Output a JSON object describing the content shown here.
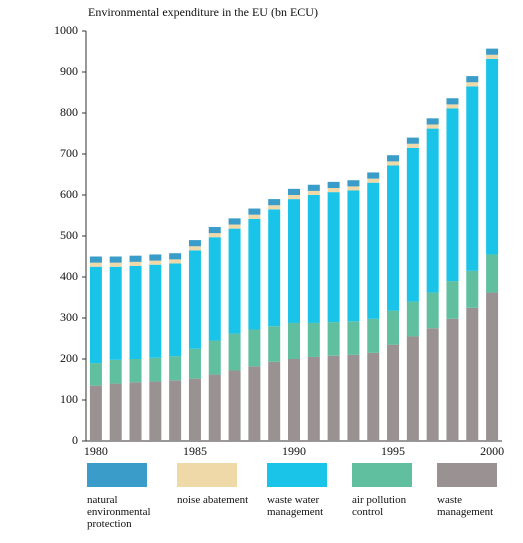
{
  "chart_data": {
    "type": "stacked_bar",
    "title": "Environmental expenditure in the EU (bn ECU)",
    "categories": [
      "1980",
      null,
      null,
      null,
      null,
      "1985",
      null,
      null,
      null,
      null,
      "1990",
      null,
      null,
      null,
      null,
      "1995",
      null,
      null,
      null,
      null,
      "2000"
    ],
    "series": [
      {
        "name": "waste management",
        "color": "#9a9292",
        "values": [
          135,
          140,
          143,
          145,
          148,
          152,
          162,
          172,
          182,
          193,
          200,
          205,
          208,
          210,
          215,
          235,
          255,
          275,
          298,
          325,
          362
        ]
      },
      {
        "name": "air pollution control",
        "color": "#5fbf9f",
        "values": [
          55,
          58,
          57,
          58,
          59,
          73,
          83,
          90,
          90,
          87,
          88,
          83,
          82,
          82,
          83,
          83,
          85,
          87,
          92,
          90,
          93
        ]
      },
      {
        "name": "waste water management",
        "color": "#19c4e8",
        "values": [
          235,
          227,
          227,
          227,
          226,
          240,
          252,
          256,
          270,
          285,
          302,
          312,
          317,
          319,
          332,
          354,
          375,
          400,
          421,
          450,
          477
        ]
      },
      {
        "name": "noise abatement",
        "color": "#f0d9a8",
        "values": [
          10,
          10,
          10,
          10,
          10,
          10,
          10,
          10,
          10,
          10,
          10,
          10,
          10,
          10,
          10,
          10,
          10,
          10,
          10,
          10,
          10
        ]
      },
      {
        "name": "natural environmental protection",
        "color": "#3a9cc8",
        "values": [
          15,
          15,
          15,
          15,
          15,
          15,
          15,
          15,
          15,
          15,
          15,
          15,
          15,
          15,
          15,
          15,
          15,
          15,
          15,
          15,
          15
        ]
      }
    ],
    "ylim": [
      0,
      1000
    ],
    "yticks": [
      0,
      100,
      200,
      300,
      400,
      500,
      600,
      700,
      800,
      900,
      1000
    ]
  }
}
